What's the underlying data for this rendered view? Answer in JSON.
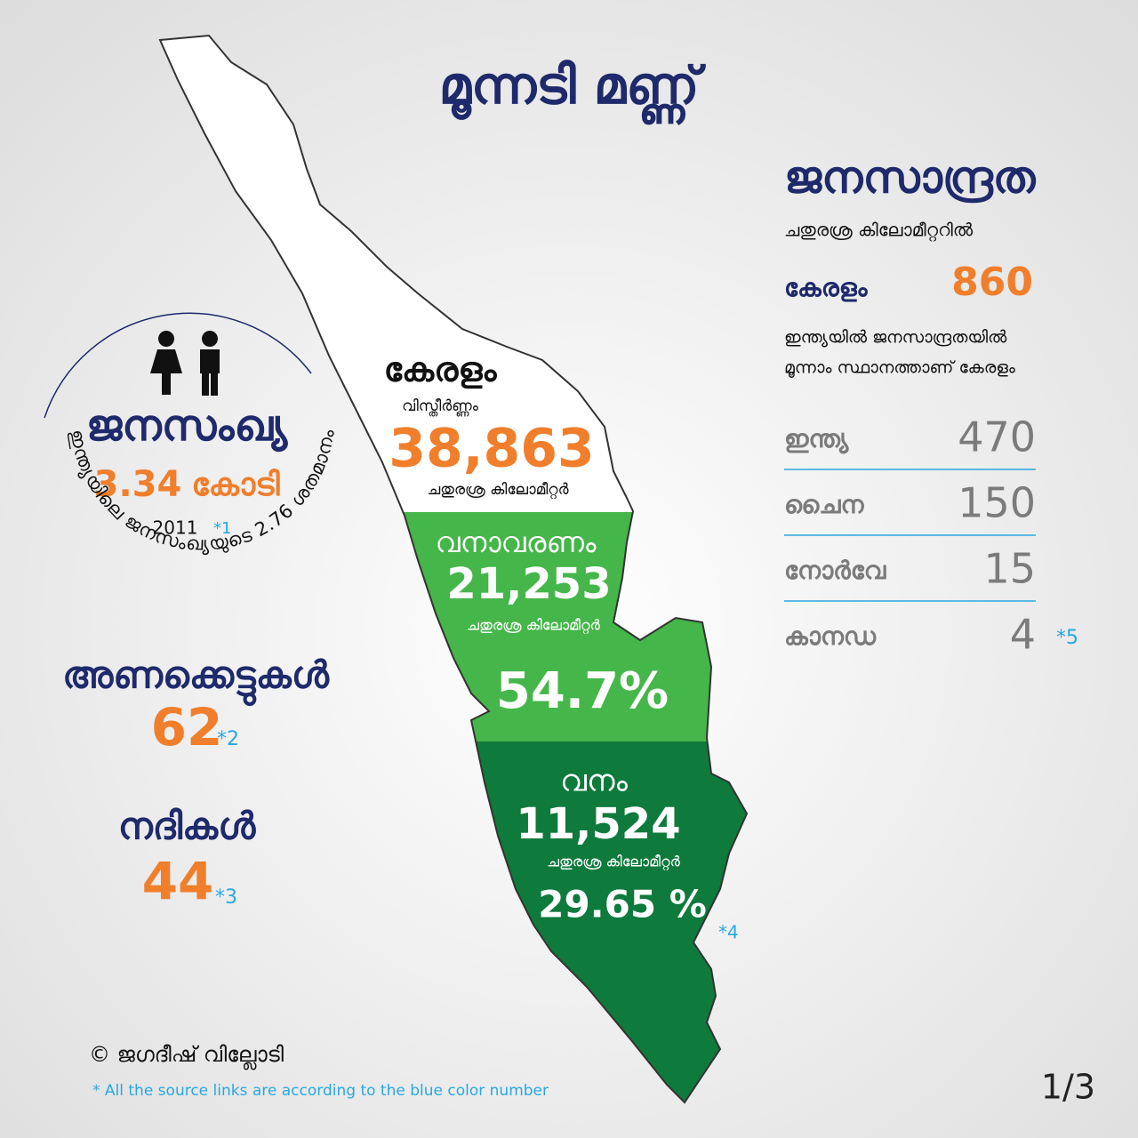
{
  "title": "മൂന്നടി മണ്ണ്",
  "population": {
    "label": "ജനസംഖ്യ",
    "value": "3.34",
    "unit": "കോടി",
    "year": "2011",
    "note": "*1",
    "arc_text": "ഇന്ത്യയിലെ ജനസംഖ്യയുടെ 2.76 ശതമാനം"
  },
  "dams": {
    "label": "അണക്കെട്ടുകൾ",
    "value": "62",
    "note": "*2"
  },
  "rivers": {
    "label": "നദികൾ",
    "value": "44",
    "note": "*3"
  },
  "map": {
    "area": {
      "label": "കേരളം",
      "sublabel": "വിസ്തീർണ്ണം",
      "value": "38,863",
      "unit": "ചതുരശ്ര കിലോമീറ്റർ"
    },
    "forest_cover": {
      "label": "വനാവരണം",
      "value": "21,253",
      "unit": "ചതുരശ്ര കിലോമീറ്റർ",
      "percent": "54.7%"
    },
    "forest": {
      "label": "വനം",
      "value": "11,524",
      "unit": "ചതുരശ്ര കിലോമീറ്റർ",
      "percent": "29.65 %",
      "note": "*4"
    }
  },
  "density": {
    "title": "ജനസാന്ദ്രത",
    "subtitle": "ചതുരശ്ര കിലോമീറ്ററിൽ",
    "kerala": {
      "label": "കേരളം",
      "value": "860"
    },
    "remark": [
      "ഇന്ത്യയിൽ ജനസാന്ദ്രതയിൽ",
      "മൂന്നാം സ്ഥാനത്താണ് കേരളം"
    ],
    "rows": [
      {
        "country": "ഇന്ത്യ",
        "value": "470"
      },
      {
        "country": "ചൈന",
        "value": "150"
      },
      {
        "country": "നോർവേ",
        "value": "15"
      },
      {
        "country": "കാനഡ",
        "value": "4"
      }
    ],
    "note": "*5"
  },
  "credit": "© ജഗദീഷ് വില്ലോടി",
  "footnote": "* All the source links are according to the blue color number",
  "page": "1/3"
}
